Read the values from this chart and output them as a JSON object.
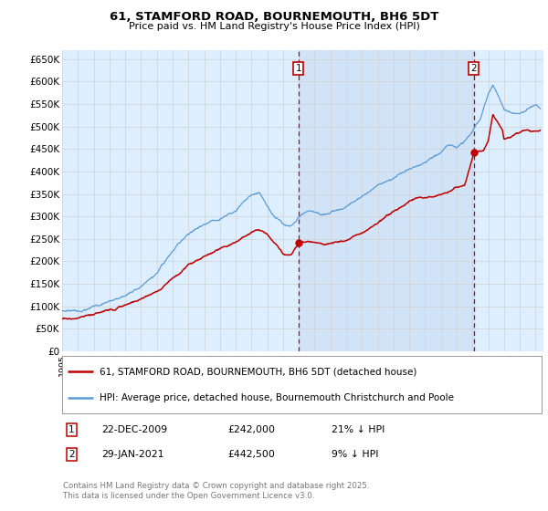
{
  "title": "61, STAMFORD ROAD, BOURNEMOUTH, BH6 5DT",
  "subtitle": "Price paid vs. HM Land Registry's House Price Index (HPI)",
  "ylim": [
    0,
    670000
  ],
  "yticks": [
    0,
    50000,
    100000,
    150000,
    200000,
    250000,
    300000,
    350000,
    400000,
    450000,
    500000,
    550000,
    600000,
    650000
  ],
  "ytick_labels": [
    "£0",
    "£50K",
    "£100K",
    "£150K",
    "£200K",
    "£250K",
    "£300K",
    "£350K",
    "£400K",
    "£450K",
    "£500K",
    "£550K",
    "£600K",
    "£650K"
  ],
  "hpi_color": "#5b9bd5",
  "price_color": "#c00000",
  "vline_color": "#c00000",
  "grid_color": "#d0d0d0",
  "background_color": "#ddeeff",
  "shade_color": "#cce0f5",
  "sale1_date": 2009.97,
  "sale1_price": 242000,
  "sale1_label": "1",
  "sale2_date": 2021.08,
  "sale2_price": 442500,
  "sale2_label": "2",
  "legend_line1": "61, STAMFORD ROAD, BOURNEMOUTH, BH6 5DT (detached house)",
  "legend_line2": "HPI: Average price, detached house, Bournemouth Christchurch and Poole",
  "footer": "Contains HM Land Registry data © Crown copyright and database right 2025.\nThis data is licensed under the Open Government Licence v3.0.",
  "xmin": 1995,
  "xmax": 2025.5,
  "sale1_date_str": "22-DEC-2009",
  "sale1_price_str": "£242,000",
  "sale1_pct_str": "21% ↓ HPI",
  "sale2_date_str": "29-JAN-2021",
  "sale2_price_str": "£442,500",
  "sale2_pct_str": "9% ↓ HPI"
}
